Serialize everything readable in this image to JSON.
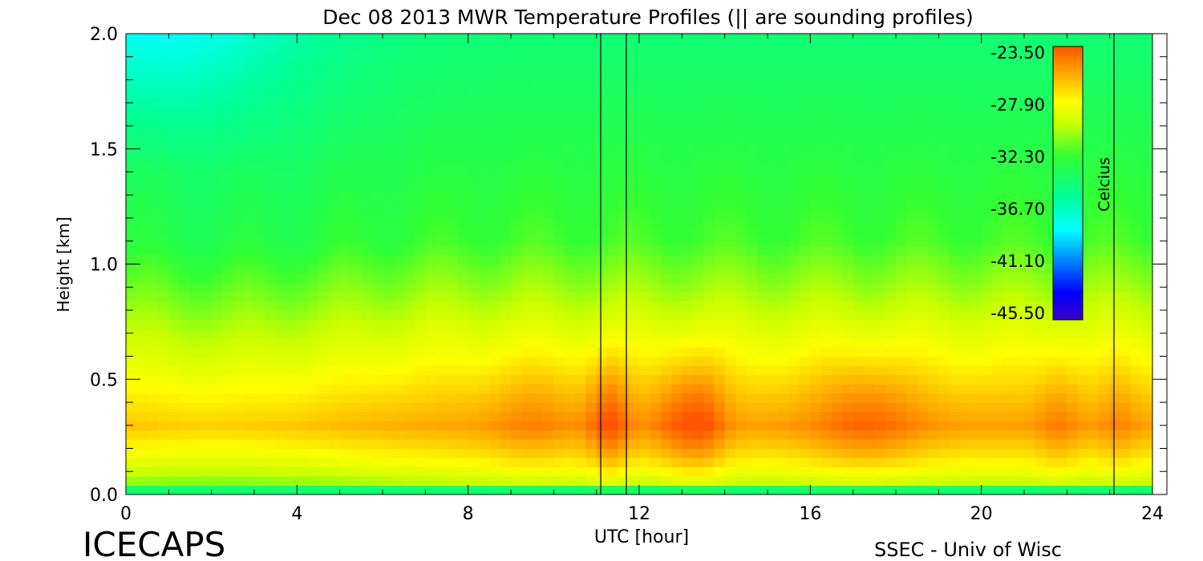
{
  "chart_data": {
    "type": "heatmap",
    "title": "Dec 08 2013 MWR Temperature Profiles (|| are sounding profiles)",
    "xlabel": "UTC [hour]",
    "ylabel": "Height [km]",
    "xlim": [
      0,
      24
    ],
    "ylim": [
      0.0,
      2.0
    ],
    "x_ticks": [
      "0",
      "4",
      "8",
      "12",
      "16",
      "20",
      "24"
    ],
    "y_ticks": [
      "0.0",
      "0.5",
      "1.0",
      "1.5",
      "2.0"
    ],
    "colorbar": {
      "label": "Celcius",
      "range": [
        -45.5,
        -23.5
      ],
      "tick_labels": [
        "-23.50",
        "-27.90",
        "-32.30",
        "-36.70",
        "-41.10",
        "-45.50"
      ]
    },
    "sounding_times": [
      11.1,
      11.7,
      23.1
    ],
    "temperature_summary": {
      "max_temp_height_km": 0.3,
      "warmest_times_utc": [
        11.3,
        13.5,
        17.5
      ],
      "coldest_region": "top-left",
      "approx_min": -38,
      "approx_max": -24
    }
  },
  "branding": {
    "left": "ICECAPS",
    "right": "SSEC - Univ of Wisc"
  }
}
